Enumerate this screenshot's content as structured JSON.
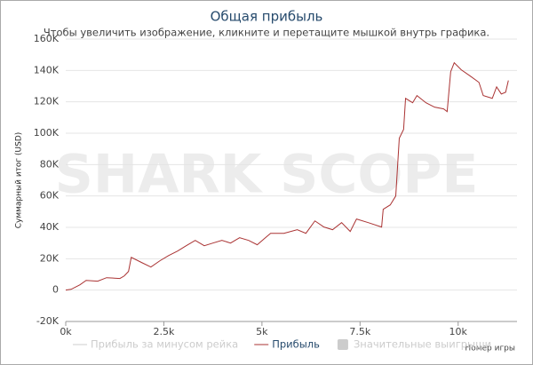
{
  "chart_data": {
    "type": "line",
    "title": "Общая прибыль",
    "subtitle": "Чтобы увеличить изображение, кликните и перетащите мышкой внутрь графика.",
    "watermark": "SHARK SCOPE",
    "xlabel": "Номер игры",
    "ylabel": "Суммарный итог (USD)",
    "xlim": [
      0,
      11500
    ],
    "ylim": [
      -20000,
      160000
    ],
    "xticks": [
      {
        "value": 0,
        "label": "0k"
      },
      {
        "value": 2500,
        "label": "2.5k"
      },
      {
        "value": 5000,
        "label": "5k"
      },
      {
        "value": 7500,
        "label": "7.5k"
      },
      {
        "value": 10000,
        "label": "10k"
      }
    ],
    "yticks": [
      {
        "value": -20000,
        "label": "-20K"
      },
      0,
      {
        "value": 20000,
        "label": "20K"
      },
      {
        "value": 40000,
        "label": "40K"
      },
      {
        "value": 60000,
        "label": "60K"
      },
      {
        "value": 80000,
        "label": "80K"
      },
      {
        "value": 100000,
        "label": "100K"
      },
      {
        "value": 120000,
        "label": "120K"
      },
      {
        "value": 140000,
        "label": "140K"
      },
      {
        "value": 160000,
        "label": "160K"
      }
    ],
    "grid": true,
    "x": [
      0,
      136,
      362,
      520,
      814,
      1040,
      1380,
      1490,
      1600,
      1670,
      1940,
      2170,
      2400,
      2620,
      2850,
      3070,
      3300,
      3530,
      3750,
      3980,
      4200,
      4430,
      4660,
      4880,
      5060,
      5220,
      5560,
      5900,
      6120,
      6350,
      6580,
      6800,
      7030,
      7250,
      7410,
      7710,
      8050,
      8090,
      8270,
      8410,
      8500,
      8610,
      8660,
      8840,
      8950,
      9180,
      9400,
      9630,
      9720,
      9810,
      9900,
      10080,
      10310,
      10530,
      10640,
      10870,
      10980,
      11100,
      11210,
      11280
    ],
    "series": [
      {
        "name": "Прибыль за минусом рейка",
        "color": "#cccccc",
        "hidden": true
      },
      {
        "name": "Прибыль",
        "color": "#aa3333",
        "values": [
          0,
          500,
          3400,
          6200,
          5700,
          7900,
          7400,
          9000,
          11900,
          20900,
          17500,
          14700,
          18700,
          22000,
          24900,
          28300,
          31700,
          28300,
          30000,
          31700,
          30000,
          33400,
          31700,
          28900,
          32800,
          36200,
          36200,
          38500,
          36200,
          44100,
          40200,
          38500,
          43000,
          37400,
          45300,
          43000,
          40200,
          51500,
          54300,
          60000,
          96800,
          102400,
          122200,
          119400,
          124000,
          119400,
          116600,
          115500,
          113800,
          139200,
          144900,
          140400,
          136400,
          132400,
          124000,
          122200,
          129500,
          125000,
          126100,
          133600
        ]
      },
      {
        "name": "Значительные выигрыши",
        "color": "#cccccc",
        "hidden": true,
        "marker": "box"
      }
    ]
  }
}
